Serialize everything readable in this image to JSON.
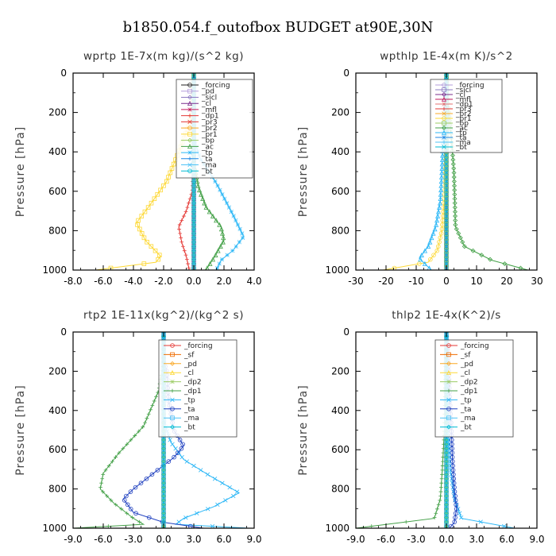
{
  "figure_title": "b1850.054.f_outofbox  BUDGET at90E,30N",
  "chart_data": [
    {
      "type": "line",
      "title": "wprtp  1E-7x(m kg)/(s^2 kg)",
      "ylabel": "Pressure [hPa]",
      "xlim": [
        -8,
        4
      ],
      "ylim": [
        1000,
        0
      ],
      "xticks": [
        "-8.0",
        "-6.0",
        "-4.0",
        "-2.0",
        "0.0",
        "2.0",
        "4.0"
      ],
      "yticks": [
        "0",
        "200",
        "400",
        "600",
        "800",
        "1000"
      ],
      "legend_position": "top-right",
      "series": [
        {
          "name": "_forcing",
          "color": "#222222",
          "values": [
            [
              0,
              0
            ],
            [
              0,
              1000
            ]
          ]
        },
        {
          "name": "_pd",
          "color": "#b39ddb",
          "values": [
            [
              0,
              0
            ],
            [
              0,
              1000
            ]
          ]
        },
        {
          "name": "_sicl",
          "color": "#8e7cc3",
          "values": [
            [
              0,
              0
            ],
            [
              0,
              1000
            ]
          ]
        },
        {
          "name": "_cl",
          "color": "#7b2d8e",
          "values": [
            [
              0,
              0
            ],
            [
              0,
              1000
            ]
          ]
        },
        {
          "name": "_mfl",
          "color": "#c2185b",
          "values": [
            [
              0,
              0
            ],
            [
              0,
              1000
            ]
          ]
        },
        {
          "name": "_dp1",
          "color": "#e53935",
          "values": [
            [
              0,
              0
            ],
            [
              0,
              400
            ],
            [
              -0.1,
              600
            ],
            [
              -0.5,
              700
            ],
            [
              -1.0,
              780
            ],
            [
              -0.8,
              860
            ],
            [
              -0.5,
              930
            ],
            [
              -0.3,
              1000
            ]
          ]
        },
        {
          "name": "_pr3",
          "color": "#e53935",
          "values": [
            [
              0,
              0
            ],
            [
              0,
              1000
            ]
          ]
        },
        {
          "name": "_pr2",
          "color": "#f9a825",
          "values": [
            [
              0,
              0
            ],
            [
              0,
              1000
            ]
          ]
        },
        {
          "name": "_pr1",
          "color": "#fdd835",
          "values": [
            [
              0,
              0
            ],
            [
              -0.1,
              200
            ],
            [
              -0.5,
              300
            ],
            [
              -1.0,
              400
            ],
            [
              -1.8,
              550
            ],
            [
              -3.0,
              680
            ],
            [
              -3.8,
              760
            ],
            [
              -3.2,
              850
            ],
            [
              -2.2,
              930
            ],
            [
              -2.5,
              960
            ],
            [
              -6.5,
              1000
            ]
          ]
        },
        {
          "name": "_bp",
          "color": "#9ccc65",
          "values": [
            [
              0,
              0
            ],
            [
              0,
              1000
            ]
          ]
        },
        {
          "name": "_ac",
          "color": "#43a047",
          "values": [
            [
              0,
              0
            ],
            [
              0,
              450
            ],
            [
              0.3,
              580
            ],
            [
              0.8,
              680
            ],
            [
              1.8,
              780
            ],
            [
              2.0,
              850
            ],
            [
              1.4,
              930
            ],
            [
              0.8,
              1000
            ]
          ]
        },
        {
          "name": "_tp",
          "color": "#29b6f6",
          "values": [
            [
              0,
              0
            ],
            [
              0,
              330
            ],
            [
              0.4,
              430
            ],
            [
              1.5,
              560
            ],
            [
              2.6,
              720
            ],
            [
              3.3,
              830
            ],
            [
              2.6,
              900
            ],
            [
              1.8,
              950
            ],
            [
              1.5,
              1000
            ]
          ]
        },
        {
          "name": "_ta",
          "color": "#1e88e5",
          "values": [
            [
              0,
              0
            ],
            [
              0,
              1000
            ]
          ]
        },
        {
          "name": "_ma",
          "color": "#4fc3f7",
          "values": [
            [
              0,
              0
            ],
            [
              0,
              1000
            ]
          ]
        },
        {
          "name": "_bt",
          "color": "#00bcd4",
          "values": [
            [
              0,
              0
            ],
            [
              0,
              1000
            ]
          ]
        }
      ]
    },
    {
      "type": "line",
      "title": "wpthlp  1E-4x(m K)/s^2",
      "ylabel": "Pressure [hPa]",
      "xlim": [
        -30,
        30
      ],
      "ylim": [
        1000,
        0
      ],
      "xticks": [
        "-30",
        "-20",
        "-10",
        "0",
        "10",
        "20",
        "30"
      ],
      "yticks": [
        "0",
        "200",
        "400",
        "600",
        "800",
        "1000"
      ],
      "legend_position": "top-right",
      "series": [
        {
          "name": "_forcing",
          "color": "#b39ddb",
          "values": [
            [
              0,
              0
            ],
            [
              0,
              1000
            ]
          ]
        },
        {
          "name": "_sicl",
          "color": "#8e7cc3",
          "values": [
            [
              0,
              0
            ],
            [
              0,
              1000
            ]
          ]
        },
        {
          "name": "_cl",
          "color": "#7b2d8e",
          "values": [
            [
              0,
              0
            ],
            [
              0,
              1000
            ]
          ]
        },
        {
          "name": "_mfl",
          "color": "#c2185b",
          "values": [
            [
              0,
              0
            ],
            [
              0,
              1000
            ]
          ]
        },
        {
          "name": "_dp1",
          "color": "#e57373",
          "values": [
            [
              0,
              0
            ],
            [
              0,
              1000
            ]
          ]
        },
        {
          "name": "_pr3",
          "color": "#e53935",
          "values": [
            [
              0,
              0
            ],
            [
              0,
              1000
            ]
          ]
        },
        {
          "name": "_pr2",
          "color": "#f9a825",
          "values": [
            [
              0,
              0
            ],
            [
              0,
              1000
            ]
          ]
        },
        {
          "name": "_pr1",
          "color": "#fdd835",
          "values": [
            [
              0,
              0
            ],
            [
              0,
              300
            ],
            [
              -0.5,
              600
            ],
            [
              -1.5,
              800
            ],
            [
              -3.0,
              900
            ],
            [
              -6,
              960
            ],
            [
              -21,
              1000
            ]
          ]
        },
        {
          "name": "_bp",
          "color": "#9ccc65",
          "values": [
            [
              0,
              0
            ],
            [
              0,
              1000
            ]
          ]
        },
        {
          "name": "_ac",
          "color": "#43a047",
          "values": [
            [
              0,
              0
            ],
            [
              0.5,
              150
            ],
            [
              1.5,
              300
            ],
            [
              2.5,
              500
            ],
            [
              2.8,
              650
            ],
            [
              3,
              780
            ],
            [
              6,
              880
            ],
            [
              15,
              950
            ],
            [
              27,
              1000
            ]
          ]
        },
        {
          "name": "_tp",
          "color": "#29b6f6",
          "values": [
            [
              0,
              0
            ],
            [
              -0.5,
              150
            ],
            [
              -1,
              300
            ],
            [
              -1.5,
              500
            ],
            [
              -2,
              650
            ],
            [
              -3.5,
              780
            ],
            [
              -6,
              880
            ],
            [
              -9,
              940
            ],
            [
              -5,
              1000
            ]
          ]
        },
        {
          "name": "_ta",
          "color": "#1e88e5",
          "values": [
            [
              0,
              0
            ],
            [
              0,
              1000
            ]
          ]
        },
        {
          "name": "_ma",
          "color": "#4fc3f7",
          "values": [
            [
              0,
              0
            ],
            [
              0,
              1000
            ]
          ]
        },
        {
          "name": "_bt",
          "color": "#00bcd4",
          "values": [
            [
              0,
              0
            ],
            [
              0,
              1000
            ]
          ]
        }
      ]
    },
    {
      "type": "line",
      "title": "rtp2  1E-11x(kg^2)/(kg^2 s)",
      "ylabel": "Pressure [hPa]",
      "xlim": [
        -9,
        9
      ],
      "ylim": [
        1000,
        0
      ],
      "xticks": [
        "-9.0",
        "-6.0",
        "-3.0",
        "0.0",
        "3.0",
        "6.0",
        "9.0"
      ],
      "yticks": [
        "0",
        "200",
        "400",
        "600",
        "800",
        "1000"
      ],
      "legend_position": "top-right",
      "series": [
        {
          "name": "_forcing",
          "color": "#e53935",
          "values": [
            [
              0,
              0
            ],
            [
              0,
              1000
            ]
          ]
        },
        {
          "name": "_sf",
          "color": "#ef6c00",
          "values": [
            [
              0,
              0
            ],
            [
              0,
              1000
            ]
          ]
        },
        {
          "name": "_pd",
          "color": "#f9a825",
          "values": [
            [
              0,
              0
            ],
            [
              0,
              1000
            ]
          ]
        },
        {
          "name": "_cl",
          "color": "#fdd835",
          "values": [
            [
              0,
              0
            ],
            [
              0,
              1000
            ]
          ]
        },
        {
          "name": "_dp2",
          "color": "#9ccc65",
          "values": [
            [
              0,
              0
            ],
            [
              0,
              1000
            ]
          ]
        },
        {
          "name": "_dp1",
          "color": "#43a047",
          "values": [
            [
              0,
              0
            ],
            [
              0,
              150
            ],
            [
              -0.5,
              300
            ],
            [
              -2,
              480
            ],
            [
              -4.5,
              620
            ],
            [
              -6,
              720
            ],
            [
              -6.3,
              800
            ],
            [
              -5,
              870
            ],
            [
              -3,
              950
            ],
            [
              -2,
              980
            ],
            [
              -9,
              1000
            ]
          ]
        },
        {
          "name": "_tp",
          "color": "#29b6f6",
          "values": [
            [
              0,
              0
            ],
            [
              0,
              450
            ],
            [
              0.7,
              560
            ],
            [
              2,
              650
            ],
            [
              4.5,
              730
            ],
            [
              7.5,
              820
            ],
            [
              5,
              890
            ],
            [
              2,
              950
            ],
            [
              1.2,
              980
            ],
            [
              8.5,
              1000
            ]
          ]
        },
        {
          "name": "_ta",
          "color": "#1e3fbf",
          "values": [
            [
              0,
              0
            ],
            [
              0,
              150
            ],
            [
              0.3,
              200
            ],
            [
              0.5,
              350
            ],
            [
              1.0,
              500
            ],
            [
              2,
              580
            ],
            [
              1,
              640
            ],
            [
              -1,
              720
            ],
            [
              -3,
              800
            ],
            [
              -4,
              850
            ],
            [
              -3,
              920
            ],
            [
              0,
              970
            ],
            [
              4,
              1000
            ]
          ]
        },
        {
          "name": "_ma",
          "color": "#4fc3f7",
          "values": [
            [
              0,
              0
            ],
            [
              0,
              1000
            ]
          ]
        },
        {
          "name": "_bt",
          "color": "#00bcd4",
          "values": [
            [
              0,
              0
            ],
            [
              0,
              1000
            ]
          ]
        }
      ]
    },
    {
      "type": "line",
      "title": "thlp2  1E-4x(K^2)/s",
      "ylabel": "Pressure [hPa]",
      "xlim": [
        -9,
        9
      ],
      "ylim": [
        1000,
        0
      ],
      "xticks": [
        "-9.0",
        "-6.0",
        "-3.0",
        "0.0",
        "3.0",
        "6.0",
        "9.0"
      ],
      "yticks": [
        "0",
        "200",
        "400",
        "600",
        "800",
        "1000"
      ],
      "legend_position": "top-right",
      "series": [
        {
          "name": "_forcing",
          "color": "#e53935",
          "values": [
            [
              0,
              0
            ],
            [
              0,
              1000
            ]
          ]
        },
        {
          "name": "_sf",
          "color": "#ef6c00",
          "values": [
            [
              0,
              0
            ],
            [
              0,
              1000
            ]
          ]
        },
        {
          "name": "_pd",
          "color": "#f9a825",
          "values": [
            [
              0,
              0
            ],
            [
              0,
              1000
            ]
          ]
        },
        {
          "name": "_cl",
          "color": "#fdd835",
          "values": [
            [
              0,
              0
            ],
            [
              0,
              1000
            ]
          ]
        },
        {
          "name": "_dp2",
          "color": "#9ccc65",
          "values": [
            [
              0,
              0
            ],
            [
              0,
              1000
            ]
          ]
        },
        {
          "name": "_dp1",
          "color": "#43a047",
          "values": [
            [
              0,
              0
            ],
            [
              -0.1,
              200
            ],
            [
              -0.2,
              500
            ],
            [
              -0.4,
              700
            ],
            [
              -0.6,
              850
            ],
            [
              -1.2,
              950
            ],
            [
              -9,
              1000
            ]
          ]
        },
        {
          "name": "_tp",
          "color": "#29b6f6",
          "values": [
            [
              0,
              0
            ],
            [
              0.1,
              200
            ],
            [
              0.2,
              500
            ],
            [
              0.4,
              700
            ],
            [
              0.8,
              850
            ],
            [
              1.5,
              950
            ],
            [
              6.8,
              1000
            ]
          ]
        },
        {
          "name": "_ta",
          "color": "#1e3fbf",
          "values": [
            [
              0,
              0
            ],
            [
              0.2,
              150
            ],
            [
              0.3,
              300
            ],
            [
              0.5,
              500
            ],
            [
              0.6,
              650
            ],
            [
              0.8,
              800
            ],
            [
              1.0,
              900
            ],
            [
              0.8,
              970
            ],
            [
              0.3,
              1000
            ]
          ]
        },
        {
          "name": "_ma",
          "color": "#4fc3f7",
          "values": [
            [
              0,
              0
            ],
            [
              0,
              1000
            ]
          ]
        },
        {
          "name": "_bt",
          "color": "#00bcd4",
          "values": [
            [
              0,
              0
            ],
            [
              0,
              1000
            ]
          ]
        }
      ]
    }
  ]
}
